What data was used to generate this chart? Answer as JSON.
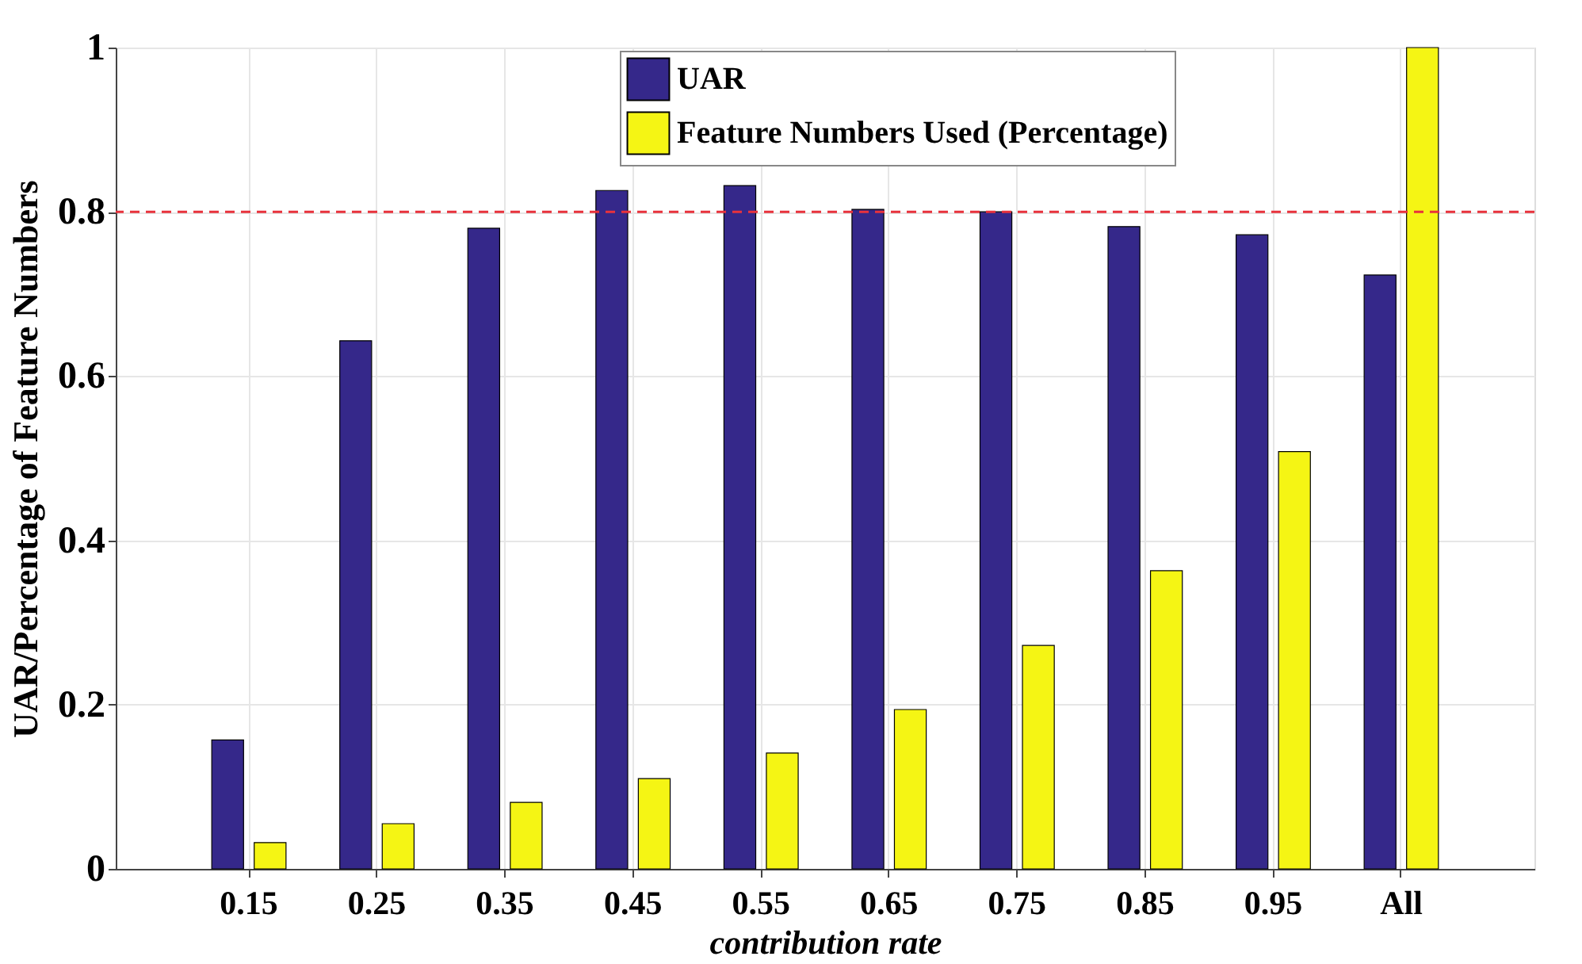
{
  "chart_data": {
    "type": "bar",
    "xlabel": "contribution rate",
    "ylabel": "UAR/Percentage of Feature Numbers",
    "categories": [
      "0.15",
      "0.25",
      "0.35",
      "0.45",
      "0.55",
      "0.65",
      "0.75",
      "0.85",
      "0.95",
      "All"
    ],
    "series": [
      {
        "name": "UAR",
        "color": "#35288a",
        "values": [
          0.157,
          0.643,
          0.78,
          0.826,
          0.832,
          0.803,
          0.8,
          0.782,
          0.772,
          0.723
        ]
      },
      {
        "name": "Feature Numbers Used (Percentage)",
        "color": "#f5f514",
        "values": [
          0.032,
          0.055,
          0.081,
          0.11,
          0.141,
          0.194,
          0.272,
          0.363,
          0.508,
          1.0
        ]
      }
    ],
    "ylim": [
      0,
      1
    ],
    "yticks": [
      0,
      0.2,
      0.4,
      0.6,
      0.8,
      1
    ],
    "ref_lines": [
      {
        "axis": "y",
        "value": 0.8,
        "color": "#e8323c",
        "line_style": "dashed"
      }
    ],
    "grid": true,
    "legend": "top right"
  }
}
